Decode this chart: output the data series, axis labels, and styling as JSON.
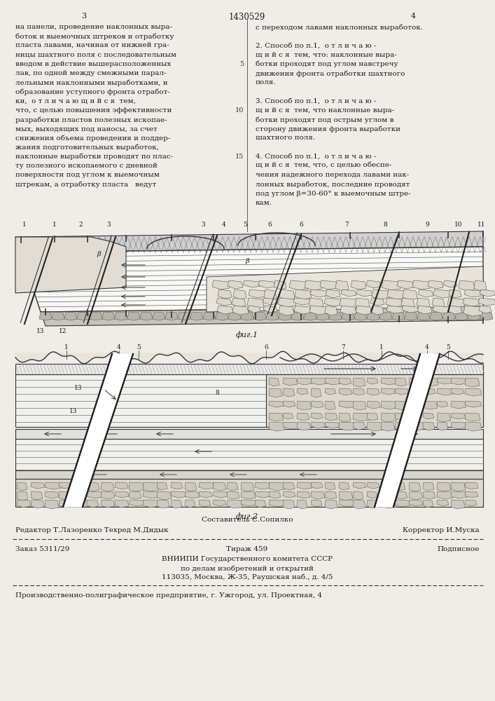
{
  "bg_color": "#f0ede8",
  "header": {
    "left_num": "3",
    "center_num": "1430529",
    "right_num": "4"
  },
  "left_col_text": [
    "на панели, проведение наклонных выра-",
    "боток и выемочных штреков и отработку",
    "пласта лавами, начиная от нижней гра-",
    "ницы шахтного поля с последовательным",
    "вводом в действие вышерасположенных",
    "лав, по одной между смежными парал-",
    "лельными наклонными выработками, и",
    "образование уступного фронта отработ-",
    "ки,  о т л и ч а ю щ и й с я  тем,",
    "что, с целью повышения эффективности",
    "разработки пластов полезных ископае-",
    "мых, выходящих под наносы, за счет",
    "снижения объема проведения и поддер-",
    "жания подготовительных выработок,",
    "наклонные выработки проводят по плас-",
    "ту полезного ископаемого с дневной",
    "поверхности под углом к выемочным",
    "штрекам, а отработку пласта   ведут"
  ],
  "left_col_linenum": "5\n10\n15",
  "right_col_text": [
    "с переходом лавами наклонных выработок.",
    "",
    "2. Способ по п.1,  о т л и ч а ю -",
    "щ и й с я  тем, что: наклонные выра-",
    "ботки проходят под углом навстречу",
    "движения фронта отработки шахтного",
    "поля.",
    "",
    "3. Способ по п.1,  о т л и ч а ю -",
    "щ и й с я  тем, что наклонные выра-",
    "ботки проходят под острым углом в",
    "сторону движения фронта выработки",
    "шахтного поля.",
    "",
    "4. Способ по п.1,  о т л и ч а ю -",
    "щ и й с я  тем, что, с целью обеспе-",
    "чения надежного перехода лавами нак-",
    "лонных выработок, последние проводят",
    "под углом β=30-60° к выемочным штре-",
    "кам."
  ],
  "fig1_label": "фиг.1",
  "fig2_label": "фиг.2",
  "footer_line1": "Составитель С.Сопилко",
  "footer_line2_left": "Редактор Т.Лазоренко Техред М.Дидык",
  "footer_line2_right": "Корректор И.Муска",
  "footer_line3_left": "Заказ 5311/29",
  "footer_line3_mid": "Тираж 459",
  "footer_line3_right": "Подписное",
  "footer_line4": "ВНИИПИ Государственного комитета СССР",
  "footer_line5": "по делам изобретений и открытий",
  "footer_line6": "113035, Москва, Ж-35, Раушская наб., д. 4/5",
  "footer_bottom": "Производственно-полиграфическое предприятие, г. Ужгород, ул. Проектная, 4"
}
